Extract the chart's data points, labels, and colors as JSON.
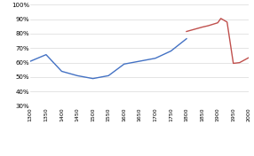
{
  "alfani_x": [
    1300,
    1350,
    1400,
    1450,
    1500,
    1550,
    1600,
    1650,
    1700,
    1750,
    1800
  ],
  "alfani_y": [
    0.61,
    0.655,
    0.54,
    0.51,
    0.49,
    0.51,
    0.59,
    0.61,
    0.63,
    0.68,
    0.765
  ],
  "piketty_x": [
    1800,
    1850,
    1870,
    1900,
    1910,
    1930,
    1950,
    1970,
    2000
  ],
  "piketty_y": [
    0.815,
    0.845,
    0.855,
    0.875,
    0.905,
    0.88,
    0.595,
    0.6,
    0.635
  ],
  "alfani_color": "#4472c4",
  "piketty_color": "#c0504d",
  "ylim": [
    0.3,
    1.0
  ],
  "yticks": [
    0.3,
    0.4,
    0.5,
    0.6,
    0.7,
    0.8,
    0.9,
    1.0
  ],
  "xlim": [
    1300,
    2000
  ],
  "xticks": [
    1300,
    1350,
    1400,
    1450,
    1500,
    1550,
    1600,
    1650,
    1700,
    1750,
    1800,
    1850,
    1900,
    1950,
    2000
  ],
  "bg_color": "#ffffff",
  "grid_color": "#d9d9d9",
  "linewidth": 1.0
}
